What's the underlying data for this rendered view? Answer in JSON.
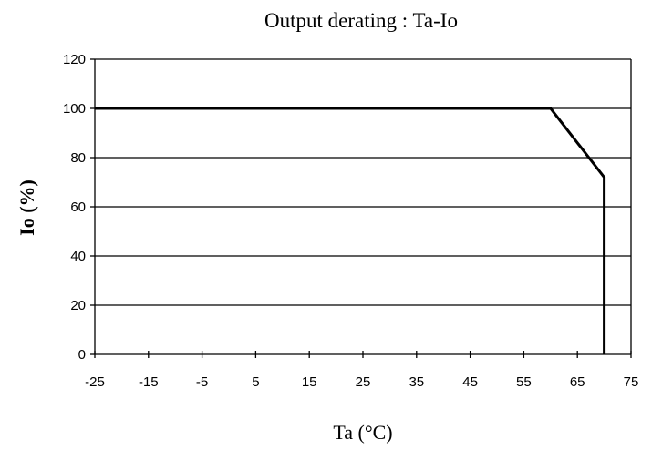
{
  "chart_data": {
    "type": "line",
    "title": "Output derating : Ta-Io",
    "xlabel": "Ta (°C)",
    "ylabel": "Io (%)",
    "xlim": [
      -25,
      75
    ],
    "ylim": [
      0,
      120
    ],
    "xticks": [
      "-25",
      "-15",
      "-5",
      "5",
      "15",
      "25",
      "35",
      "45",
      "55",
      "65",
      "75"
    ],
    "yticks": [
      "0",
      "20",
      "40",
      "60",
      "80",
      "100",
      "120"
    ],
    "grid": "horizontal",
    "legend": "none",
    "series": [
      {
        "x": [
          -25,
          60,
          70,
          70
        ],
        "y": [
          100,
          100,
          72,
          0
        ]
      }
    ],
    "colors": {
      "line": "#000000",
      "grid": "#000000",
      "background": "#ffffff"
    }
  }
}
